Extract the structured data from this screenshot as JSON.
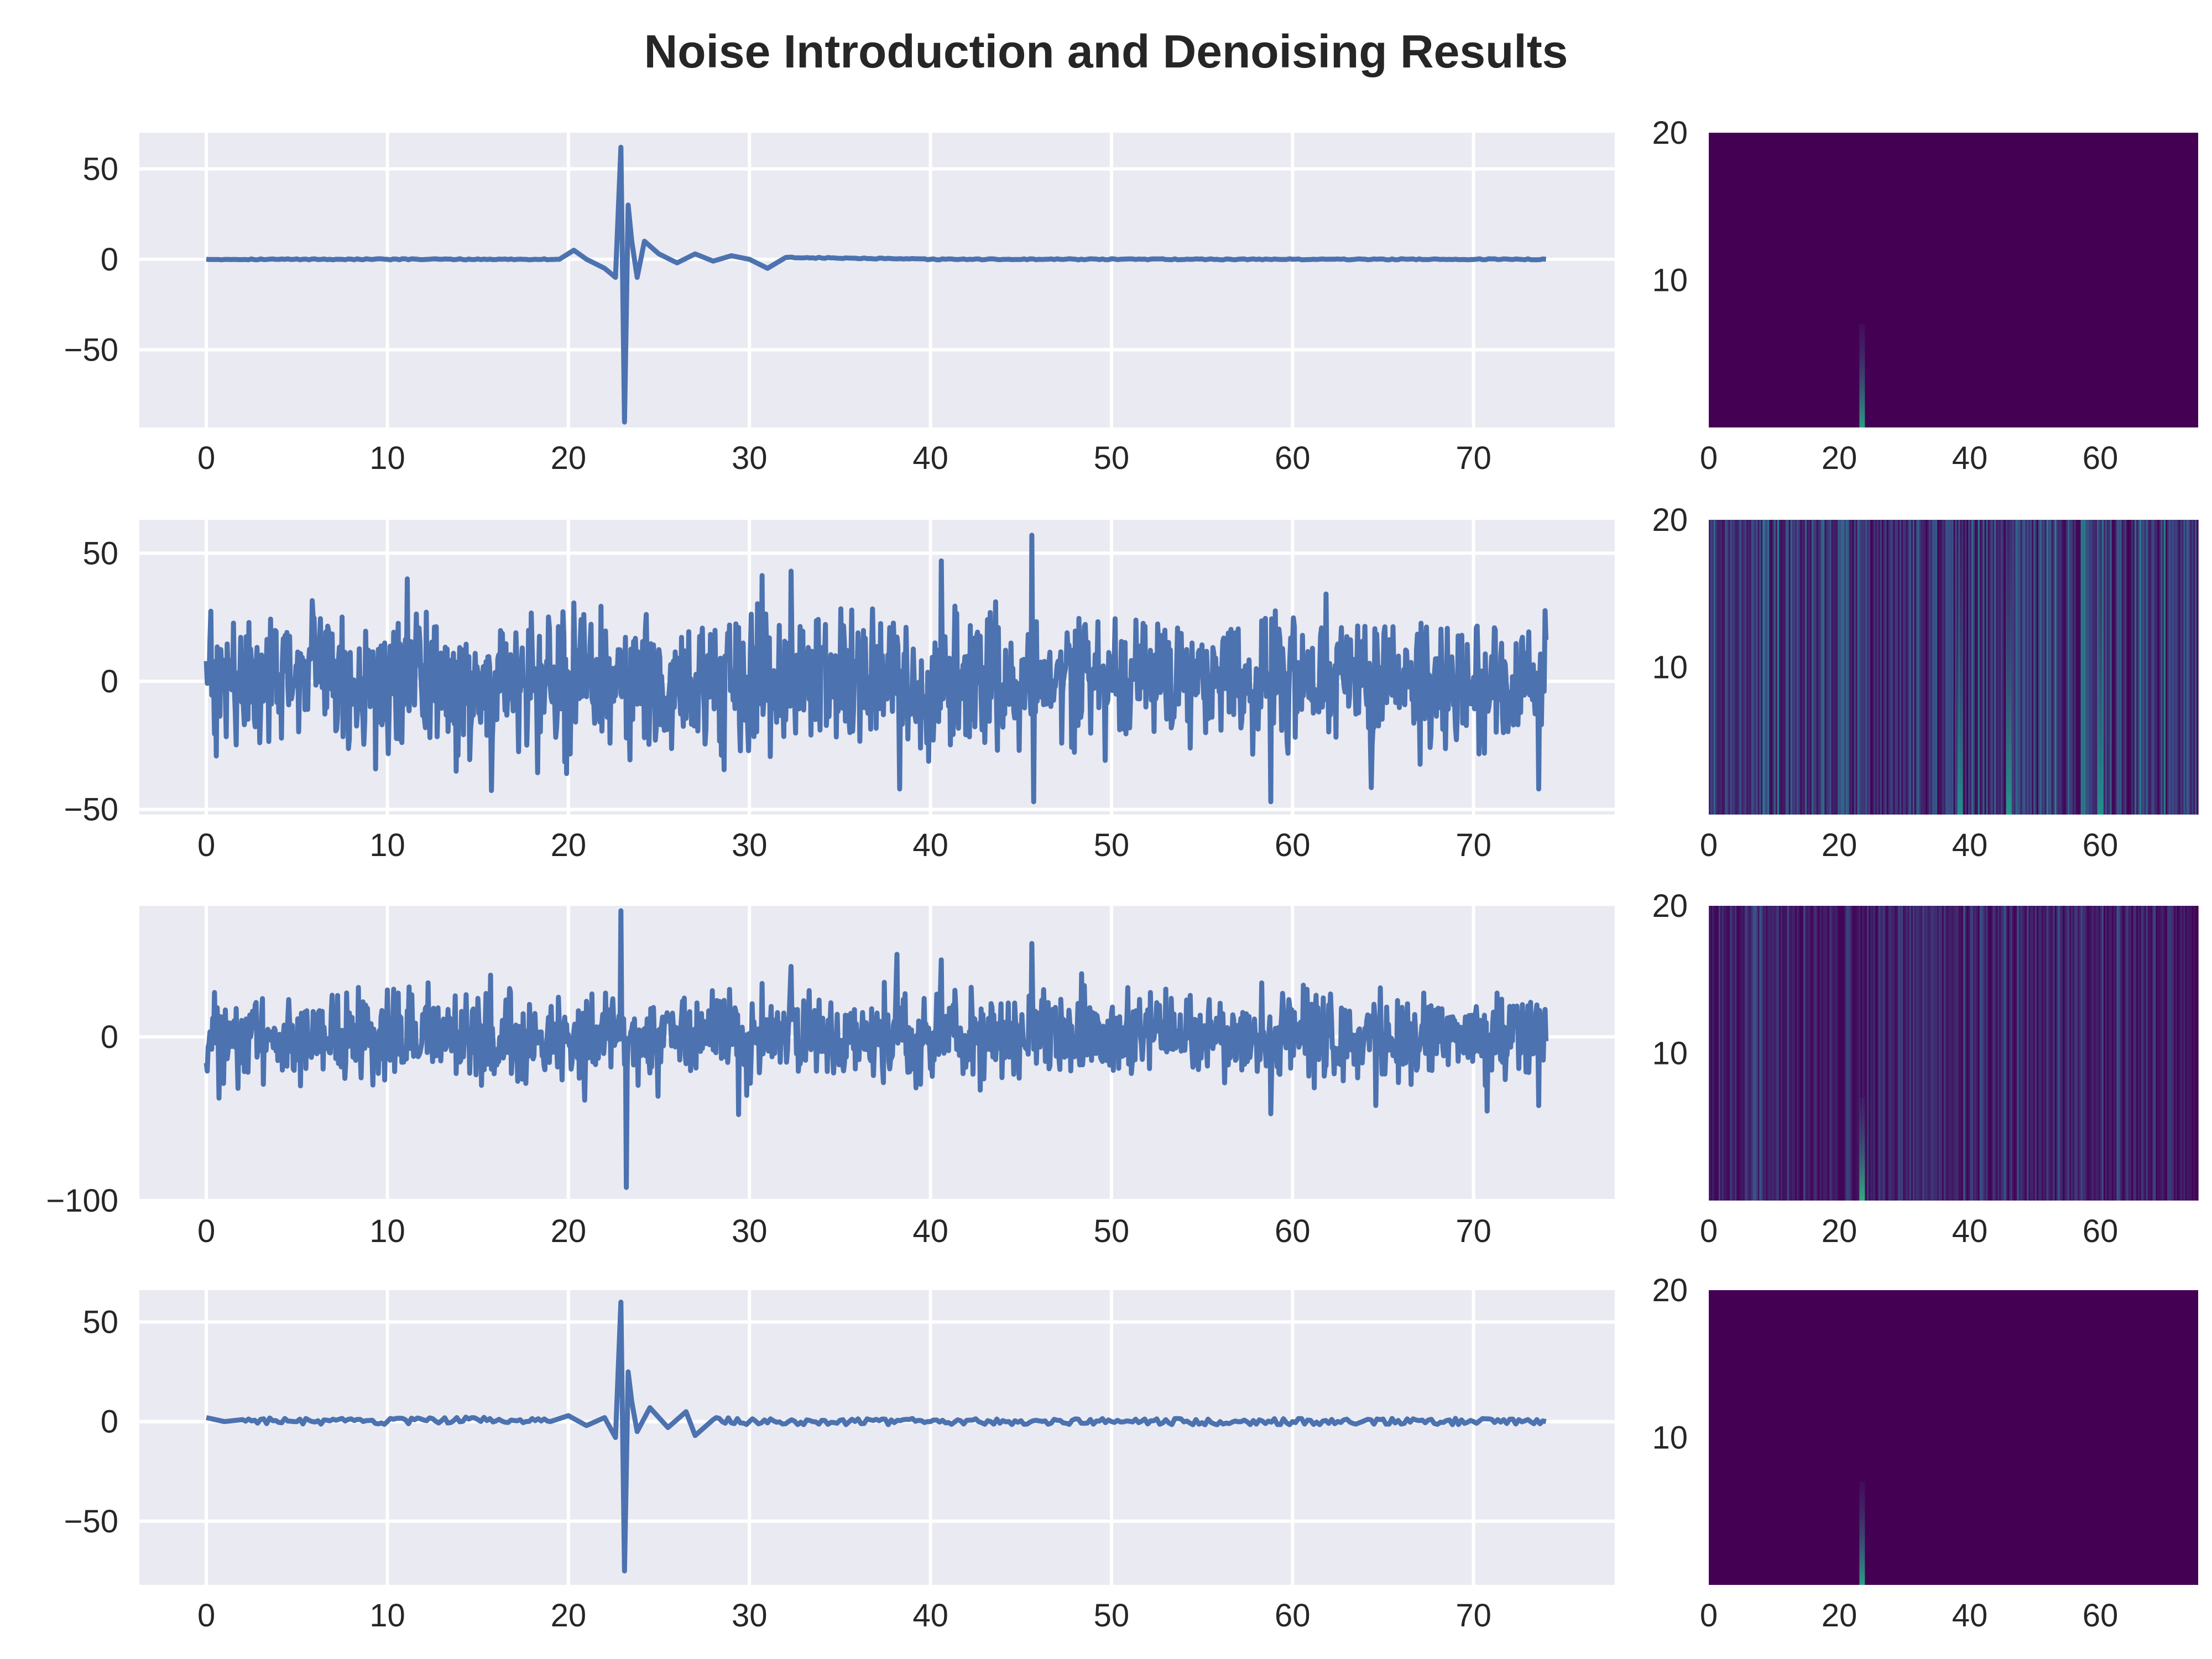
{
  "title": "Noise Introduction and Denoising Results",
  "colors": {
    "axes_background": "#eaeaf2",
    "grid": "#ffffff",
    "line": "#4c72b0",
    "text": "#262626",
    "spectrogram_low": "#440154",
    "spectrogram_high": "#35b779"
  },
  "chart_data": [
    {
      "type": "line",
      "panel": "clean signal",
      "xlim": [
        -3.7,
        77.8
      ],
      "ylim": [
        -93,
        70
      ],
      "xticks": [
        0,
        10,
        20,
        30,
        40,
        50,
        60,
        70
      ],
      "yticks": [
        -50,
        0,
        50
      ],
      "grid": true,
      "description": "flat near 0 with a sharp event around x≈23",
      "x": [
        0,
        10,
        19.5,
        20.3,
        21,
        22,
        22.6,
        22.9,
        23.1,
        23.3,
        23.5,
        23.8,
        24.2,
        25,
        26,
        27,
        28,
        29,
        30,
        31,
        32,
        40,
        60,
        74
      ],
      "y": [
        0,
        0,
        0,
        5,
        0,
        -5,
        -10,
        62,
        -90,
        30,
        10,
        -10,
        10,
        3,
        -2,
        3,
        -1,
        2,
        0,
        -5,
        1,
        0,
        0,
        0
      ]
    },
    {
      "type": "line",
      "panel": "noise",
      "xlim": [
        -3.7,
        77.8
      ],
      "ylim": [
        -52,
        63
      ],
      "xticks": [
        0,
        10,
        20,
        30,
        40,
        50,
        60,
        70
      ],
      "yticks": [
        -50,
        0,
        50
      ],
      "grid": true,
      "description": "dense random noise, amplitude roughly ±25 with occasional peaks",
      "noise_amplitude": 18,
      "peaks": [
        {
          "x": 19.9,
          "y": -36
        },
        {
          "x": 32.3,
          "y": 43
        },
        {
          "x": 38.3,
          "y": -42
        },
        {
          "x": 40.6,
          "y": 47
        },
        {
          "x": 45.6,
          "y": 57
        },
        {
          "x": 45.7,
          "y": -47
        },
        {
          "x": 58.8,
          "y": -47
        },
        {
          "x": 73.6,
          "y": -42
        }
      ],
      "x_range": [
        0,
        74
      ]
    },
    {
      "type": "line",
      "panel": "noisy signal",
      "xlim": [
        -3.7,
        77.8
      ],
      "ylim": [
        -100,
        80
      ],
      "xticks": [
        0,
        10,
        20,
        30,
        40,
        50,
        60,
        70
      ],
      "yticks": [
        -100,
        0
      ],
      "grid": true,
      "description": "clean signal plus noise",
      "noise_amplitude": 18,
      "peaks": [
        {
          "x": 22.9,
          "y": 77
        },
        {
          "x": 23.2,
          "y": -92
        },
        {
          "x": 32.3,
          "y": 43
        },
        {
          "x": 40.6,
          "y": 47
        },
        {
          "x": 45.6,
          "y": 57
        },
        {
          "x": 58.8,
          "y": -47
        },
        {
          "x": 73.6,
          "y": -42
        }
      ],
      "x_range": [
        0,
        74
      ]
    },
    {
      "type": "line",
      "panel": "denoised signal",
      "xlim": [
        -3.7,
        77.8
      ],
      "ylim": [
        -82,
        66
      ],
      "xticks": [
        0,
        10,
        20,
        30,
        40,
        50,
        60,
        70
      ],
      "yticks": [
        -50,
        0,
        50
      ],
      "grid": true,
      "description": "recovered event near x≈23 with small residual noise",
      "x": [
        0,
        1,
        2,
        5,
        10,
        15,
        19,
        20,
        21,
        22,
        22.6,
        22.9,
        23.1,
        23.3,
        23.5,
        23.8,
        24.5,
        25.5,
        26.5,
        27,
        28,
        30,
        40,
        50,
        60,
        70,
        74
      ],
      "y": [
        2,
        0,
        1,
        0,
        0,
        1,
        0,
        3,
        -2,
        2,
        -8,
        60,
        -75,
        25,
        10,
        -5,
        7,
        -3,
        5,
        -7,
        1,
        0,
        0,
        0,
        0,
        0,
        0
      ]
    }
  ],
  "spectrograms": [
    {
      "type": "heatmap",
      "panel": "clean spectrogram",
      "xlim": [
        0,
        75
      ],
      "ylim": [
        0,
        20
      ],
      "xticks": [
        0,
        20,
        40,
        60
      ],
      "yticks": [
        10,
        20
      ],
      "colormap": "viridis",
      "hotspots": [
        {
          "x": 23.5,
          "y_max": 7,
          "intensity": 0.6
        }
      ]
    },
    {
      "type": "heatmap",
      "panel": "noise spectrogram",
      "xlim": [
        0,
        75
      ],
      "ylim": [
        0,
        20
      ],
      "xticks": [
        0,
        20,
        40,
        60
      ],
      "yticks": [
        10,
        20
      ],
      "colormap": "viridis",
      "noise_level": 0.35,
      "hotspots": [
        {
          "x": 38.5,
          "y_max": 20,
          "intensity": 0.5
        },
        {
          "x": 46,
          "y_max": 20,
          "intensity": 0.55
        },
        {
          "x": 60,
          "y_max": 20,
          "intensity": 0.5
        }
      ]
    },
    {
      "type": "heatmap",
      "panel": "noisy spectrogram",
      "xlim": [
        0,
        75
      ],
      "ylim": [
        0,
        20
      ],
      "xticks": [
        0,
        20,
        40,
        60
      ],
      "yticks": [
        10,
        20
      ],
      "colormap": "viridis",
      "noise_level": 0.22,
      "hotspots": [
        {
          "x": 23.5,
          "y_max": 7,
          "intensity": 0.7
        }
      ]
    },
    {
      "type": "heatmap",
      "panel": "denoised spectrogram",
      "xlim": [
        0,
        75
      ],
      "ylim": [
        0,
        20
      ],
      "xticks": [
        0,
        20,
        40,
        60
      ],
      "yticks": [
        10,
        20
      ],
      "colormap": "viridis",
      "hotspots": [
        {
          "x": 23.5,
          "y_max": 7,
          "intensity": 0.6
        }
      ]
    }
  ]
}
